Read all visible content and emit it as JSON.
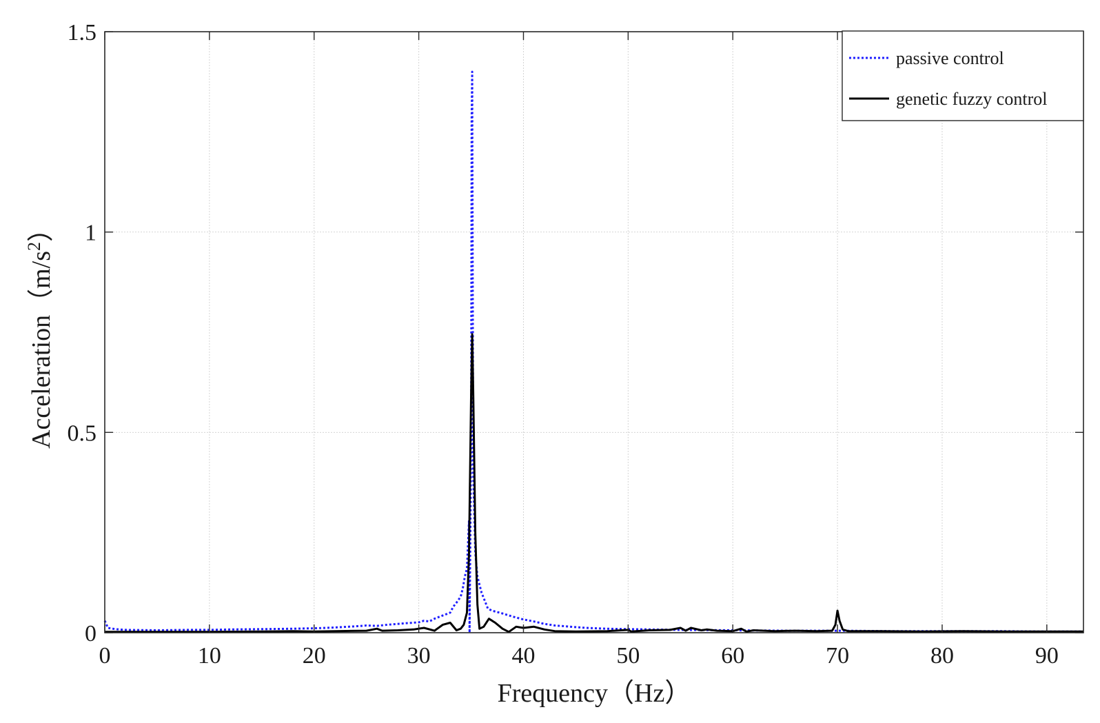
{
  "chart_data": {
    "type": "line",
    "title": "",
    "xlabel": "Frequency（Hz）",
    "ylabel_main": "Acceleration（m/s",
    "ylabel_sup": "2",
    "ylabel_end": "）",
    "xlim": [
      0,
      93.5
    ],
    "ylim": [
      0,
      1.5
    ],
    "xticks": [
      0,
      10,
      20,
      30,
      40,
      50,
      60,
      70,
      80,
      90
    ],
    "yticks": [
      0,
      0.5,
      1,
      1.5
    ],
    "ytick_labels": [
      "0",
      "0.5",
      "1",
      "1.5"
    ],
    "grid": true,
    "legend_position": "top-right",
    "series": [
      {
        "name": "passive control",
        "color": "#1f1fff",
        "style": "dotted",
        "points": [
          [
            0,
            0.03
          ],
          [
            0.3,
            0.012
          ],
          [
            1,
            0.009
          ],
          [
            2,
            0.007
          ],
          [
            5,
            0.006
          ],
          [
            8,
            0.007
          ],
          [
            10,
            0.007
          ],
          [
            12,
            0.008
          ],
          [
            15,
            0.009
          ],
          [
            18,
            0.01
          ],
          [
            20,
            0.011
          ],
          [
            22,
            0.013
          ],
          [
            24,
            0.016
          ],
          [
            25,
            0.018
          ],
          [
            26,
            0.017
          ],
          [
            27,
            0.02
          ],
          [
            28,
            0.022
          ],
          [
            29,
            0.024
          ],
          [
            30,
            0.026
          ],
          [
            30.5,
            0.03
          ],
          [
            31,
            0.028
          ],
          [
            31.5,
            0.035
          ],
          [
            32,
            0.04
          ],
          [
            32.5,
            0.045
          ],
          [
            33,
            0.05
          ],
          [
            33.3,
            0.065
          ],
          [
            33.6,
            0.075
          ],
          [
            34,
            0.09
          ],
          [
            34.2,
            0.11
          ],
          [
            34.4,
            0.14
          ],
          [
            34.6,
            0.16
          ],
          [
            34.8,
            0.28
          ],
          [
            34.85,
            0.0
          ],
          [
            35.0,
            0.5
          ],
          [
            35.05,
            1.28
          ],
          [
            35.1,
            1.4
          ],
          [
            35.2,
            0.4
          ],
          [
            35.4,
            0.2
          ],
          [
            35.6,
            0.14
          ],
          [
            35.8,
            0.12
          ],
          [
            36.0,
            0.1
          ],
          [
            36.3,
            0.08
          ],
          [
            36.6,
            0.06
          ],
          [
            37,
            0.055
          ],
          [
            38,
            0.048
          ],
          [
            39,
            0.04
          ],
          [
            40,
            0.033
          ],
          [
            41,
            0.028
          ],
          [
            42,
            0.022
          ],
          [
            43,
            0.018
          ],
          [
            44,
            0.016
          ],
          [
            45,
            0.014
          ],
          [
            46,
            0.012
          ],
          [
            48,
            0.01
          ],
          [
            50,
            0.009
          ],
          [
            55,
            0.007
          ],
          [
            60,
            0.006
          ],
          [
            65,
            0.005
          ],
          [
            70,
            0.005
          ],
          [
            75,
            0.004
          ],
          [
            80,
            0.004
          ],
          [
            85,
            0.004
          ],
          [
            90,
            0.003
          ],
          [
            93.5,
            0.003
          ]
        ]
      },
      {
        "name": "genetic fuzzy control",
        "color": "#000000",
        "style": "solid",
        "points": [
          [
            0,
            0.002
          ],
          [
            5,
            0.002
          ],
          [
            10,
            0.002
          ],
          [
            15,
            0.003
          ],
          [
            18,
            0.004
          ],
          [
            20,
            0.003
          ],
          [
            22,
            0.004
          ],
          [
            25,
            0.005
          ],
          [
            26,
            0.01
          ],
          [
            26.5,
            0.005
          ],
          [
            28,
            0.006
          ],
          [
            29.5,
            0.008
          ],
          [
            30.5,
            0.012
          ],
          [
            31.5,
            0.005
          ],
          [
            32.3,
            0.02
          ],
          [
            33,
            0.025
          ],
          [
            33.6,
            0.006
          ],
          [
            34.0,
            0.01
          ],
          [
            34.3,
            0.02
          ],
          [
            34.6,
            0.05
          ],
          [
            34.8,
            0.2
          ],
          [
            35.0,
            0.6
          ],
          [
            35.1,
            0.745
          ],
          [
            35.2,
            0.6
          ],
          [
            35.4,
            0.25
          ],
          [
            35.6,
            0.07
          ],
          [
            35.8,
            0.01
          ],
          [
            36.2,
            0.015
          ],
          [
            36.7,
            0.035
          ],
          [
            37.3,
            0.025
          ],
          [
            38.0,
            0.01
          ],
          [
            38.6,
            0.002
          ],
          [
            39.3,
            0.015
          ],
          [
            40,
            0.012
          ],
          [
            41,
            0.015
          ],
          [
            42,
            0.008
          ],
          [
            43,
            0.004
          ],
          [
            45,
            0.003
          ],
          [
            48,
            0.004
          ],
          [
            50,
            0.007
          ],
          [
            50.3,
            0.003
          ],
          [
            52,
            0.006
          ],
          [
            54,
            0.007
          ],
          [
            55,
            0.012
          ],
          [
            55.5,
            0.005
          ],
          [
            56,
            0.012
          ],
          [
            57,
            0.006
          ],
          [
            57.5,
            0.008
          ],
          [
            58.5,
            0.005
          ],
          [
            60,
            0.004
          ],
          [
            60.8,
            0.01
          ],
          [
            61.3,
            0.003
          ],
          [
            62,
            0.006
          ],
          [
            64,
            0.004
          ],
          [
            66,
            0.005
          ],
          [
            68,
            0.004
          ],
          [
            69.5,
            0.005
          ],
          [
            69.8,
            0.02
          ],
          [
            70.0,
            0.055
          ],
          [
            70.2,
            0.03
          ],
          [
            70.5,
            0.008
          ],
          [
            71,
            0.004
          ],
          [
            74,
            0.004
          ],
          [
            78,
            0.003
          ],
          [
            82,
            0.004
          ],
          [
            86,
            0.003
          ],
          [
            90,
            0.003
          ],
          [
            93.5,
            0.003
          ]
        ]
      }
    ]
  }
}
